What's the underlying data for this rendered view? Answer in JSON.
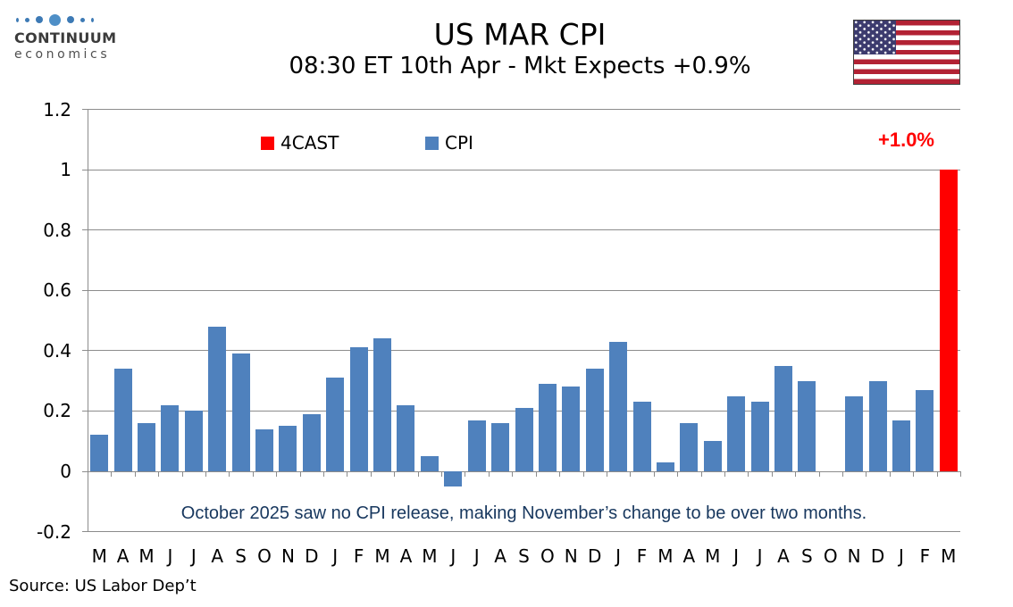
{
  "logo": {
    "name": "CONTINUUM",
    "tagline": "economics"
  },
  "header": {
    "title": "US MAR CPI",
    "subtitle": "08:30 ET 10th Apr - Mkt Expects +0.9%"
  },
  "legend": {
    "items": [
      {
        "label": "4CAST",
        "color": "#FF0000"
      },
      {
        "label": "CPI",
        "color": "#4F81BD"
      }
    ]
  },
  "forecast_callout": {
    "text": "+1.0%",
    "color": "#FF0000"
  },
  "footnote": {
    "text": "October 2025 saw no CPI release, making November’s change to be over two months.",
    "color": "#17375E"
  },
  "source": {
    "text": "Source: US Labor Dep’t"
  },
  "chart_data": {
    "type": "bar",
    "title": "US MAR CPI",
    "categories": [
      "M",
      "A",
      "M",
      "J",
      "J",
      "A",
      "S",
      "O",
      "N",
      "D",
      "J",
      "F",
      "M",
      "A",
      "M",
      "J",
      "J",
      "A",
      "S",
      "O",
      "N",
      "D",
      "J",
      "F",
      "M",
      "A",
      "M",
      "J",
      "J",
      "A",
      "S",
      "O",
      "N",
      "D",
      "J",
      "F",
      "M"
    ],
    "series": [
      {
        "name": "CPI",
        "color": "#4F81BD",
        "values": [
          0.12,
          0.34,
          0.16,
          0.22,
          0.2,
          0.48,
          0.39,
          0.14,
          0.15,
          0.19,
          0.31,
          0.41,
          0.44,
          0.22,
          0.05,
          -0.05,
          0.17,
          0.16,
          0.21,
          0.29,
          0.28,
          0.34,
          0.43,
          0.23,
          0.03,
          0.16,
          0.1,
          0.25,
          0.23,
          0.35,
          0.3,
          null,
          0.25,
          0.3,
          0.17,
          0.27,
          null
        ]
      },
      {
        "name": "4CAST",
        "color": "#FF0000",
        "values": [
          null,
          null,
          null,
          null,
          null,
          null,
          null,
          null,
          null,
          null,
          null,
          null,
          null,
          null,
          null,
          null,
          null,
          null,
          null,
          null,
          null,
          null,
          null,
          null,
          null,
          null,
          null,
          null,
          null,
          null,
          null,
          null,
          null,
          null,
          null,
          null,
          1.0
        ]
      }
    ],
    "ylim": [
      -0.2,
      1.2
    ],
    "y_ticks": [
      1.2,
      1.0,
      0.8,
      0.6,
      0.4,
      0.2,
      0,
      -0.2
    ],
    "y_tick_labels": [
      "1.2",
      "1",
      "0.8",
      "0.6",
      "0.4",
      "0.2",
      "0",
      "-0.2"
    ],
    "grid": true,
    "legend_position": "top-center",
    "xlabel": "",
    "ylabel": ""
  }
}
